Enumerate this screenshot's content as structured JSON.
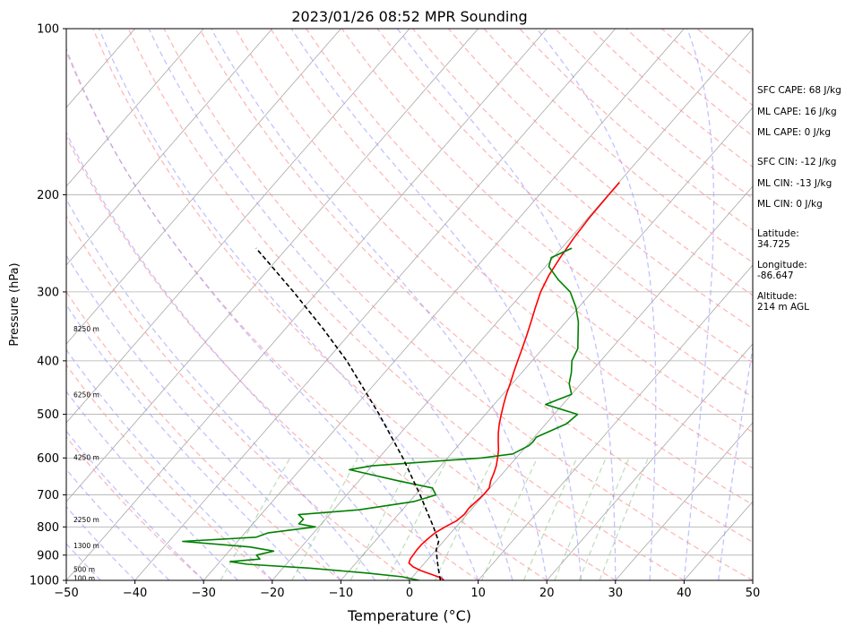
{
  "chart_data": {
    "type": "skew-t",
    "title": "2023/01/26 08:52 MPR Sounding",
    "xlabel": "Temperature (°C)",
    "ylabel": "Pressure (hPa)",
    "xlim": [
      -50,
      50
    ],
    "ylim_hpa": [
      1000,
      100
    ],
    "y_scale": "log",
    "x_ticks": [
      "−50",
      "−40",
      "−30",
      "−20",
      "−10",
      "0",
      "10",
      "20",
      "30",
      "40",
      "50"
    ],
    "x_tick_values": [
      -50,
      -40,
      -30,
      -20,
      -10,
      0,
      10,
      20,
      30,
      40,
      50
    ],
    "y_ticks": [
      "1000",
      "900",
      "800",
      "700",
      "600",
      "500",
      "400",
      "300",
      "200",
      "100"
    ],
    "y_tick_values": [
      1000,
      900,
      800,
      700,
      600,
      500,
      400,
      300,
      200,
      100
    ],
    "grid": true,
    "height_labels": [
      {
        "text": "100 m",
        "p": 990
      },
      {
        "text": "500 m",
        "p": 955
      },
      {
        "text": "1300 m",
        "p": 865
      },
      {
        "text": "2250 m",
        "p": 775
      },
      {
        "text": "4250 m",
        "p": 598
      },
      {
        "text": "6250 m",
        "p": 460
      },
      {
        "text": "8250 m",
        "p": 350
      }
    ],
    "series": [
      {
        "color": "#ff0000",
        "points": [
          [
            1000,
            5.0
          ],
          [
            990,
            4.3
          ],
          [
            975,
            2.4
          ],
          [
            960,
            0.4
          ],
          [
            945,
            -1.2
          ],
          [
            930,
            -2.3
          ],
          [
            915,
            -2.6
          ],
          [
            900,
            -2.7
          ],
          [
            880,
            -2.8
          ],
          [
            860,
            -2.8
          ],
          [
            840,
            -2.6
          ],
          [
            820,
            -2.3
          ],
          [
            800,
            -1.6
          ],
          [
            780,
            -0.7
          ],
          [
            760,
            -0.4
          ],
          [
            740,
            -0.5
          ],
          [
            720,
            -0.3
          ],
          [
            700,
            -0.1
          ],
          [
            680,
            -0.1
          ],
          [
            660,
            -0.8
          ],
          [
            640,
            -1.3
          ],
          [
            620,
            -1.9
          ],
          [
            600,
            -2.7
          ],
          [
            580,
            -3.6
          ],
          [
            560,
            -4.7
          ],
          [
            540,
            -5.8
          ],
          [
            520,
            -6.8
          ],
          [
            500,
            -7.7
          ],
          [
            480,
            -8.6
          ],
          [
            460,
            -9.5
          ],
          [
            440,
            -10.3
          ],
          [
            420,
            -11.2
          ],
          [
            400,
            -12.1
          ],
          [
            380,
            -13.0
          ],
          [
            360,
            -14.0
          ],
          [
            340,
            -15.1
          ],
          [
            320,
            -16.3
          ],
          [
            300,
            -17.5
          ],
          [
            280,
            -18.4
          ],
          [
            260,
            -19.0
          ],
          [
            240,
            -19.5
          ],
          [
            220,
            -19.8
          ],
          [
            200,
            -19.9
          ],
          [
            190,
            -19.9
          ]
        ]
      },
      {
        "color": "#008000",
        "points": [
          [
            1000,
            1.4
          ],
          [
            985,
            -1.5
          ],
          [
            970,
            -7.0
          ],
          [
            950,
            -16.2
          ],
          [
            935,
            -25.7
          ],
          [
            925,
            -28.5
          ],
          [
            915,
            -24.5
          ],
          [
            900,
            -25.5
          ],
          [
            885,
            -23.5
          ],
          [
            870,
            -27.5
          ],
          [
            850,
            -38.0
          ],
          [
            835,
            -27.8
          ],
          [
            820,
            -26.6
          ],
          [
            800,
            -20.5
          ],
          [
            790,
            -23.3
          ],
          [
            775,
            -23.2
          ],
          [
            760,
            -24.5
          ],
          [
            745,
            -16.3
          ],
          [
            720,
            -9.4
          ],
          [
            700,
            -7.0
          ],
          [
            680,
            -8.4
          ],
          [
            660,
            -14.3
          ],
          [
            630,
            -22.8
          ],
          [
            620,
            -20.0
          ],
          [
            600,
            -5.0
          ],
          [
            590,
            -1.0
          ],
          [
            570,
            0.3
          ],
          [
            560,
            0.4
          ],
          [
            550,
            0.3
          ],
          [
            520,
            3.0
          ],
          [
            500,
            3.4
          ],
          [
            480,
            -2.5
          ],
          [
            460,
            0.0
          ],
          [
            440,
            -1.7
          ],
          [
            420,
            -2.8
          ],
          [
            400,
            -4.2
          ],
          [
            380,
            -4.9
          ],
          [
            360,
            -6.5
          ],
          [
            340,
            -8.2
          ],
          [
            320,
            -10.4
          ],
          [
            300,
            -13.2
          ],
          [
            285,
            -16.5
          ],
          [
            270,
            -19.5
          ],
          [
            260,
            -20.3
          ],
          [
            250,
            -18.5
          ]
        ]
      },
      {
        "color": "#000000",
        "dashed": true,
        "points": [
          [
            1000,
            4.5
          ],
          [
            960,
            3.0
          ],
          [
            920,
            1.5
          ],
          [
            880,
            0.0
          ],
          [
            850,
            -0.7
          ],
          [
            800,
            -3.3
          ],
          [
            700,
            -9.3
          ],
          [
            600,
            -16.5
          ],
          [
            500,
            -25.5
          ],
          [
            400,
            -37.0
          ],
          [
            350,
            -44.5
          ],
          [
            300,
            -53.5
          ],
          [
            250,
            -64.5
          ]
        ]
      }
    ]
  },
  "side_panel": {
    "sfc_cape": "SFC CAPE: 68 J/kg",
    "ml_cape": "ML CAPE: 16 J/kg",
    "ml_cape_2": "ML CAPE: 0 J/kg",
    "sfc_cin": "SFC CIN: -12 J/kg",
    "ml_cin": "ML CIN: -13 J/kg",
    "ml_cin_2": "ML CIN: 0 J/kg",
    "latitude": "Latitude:\n34.725",
    "longitude": "Longitude:\n-86.647",
    "altitude": "Altitude:\n214 m AGL"
  }
}
